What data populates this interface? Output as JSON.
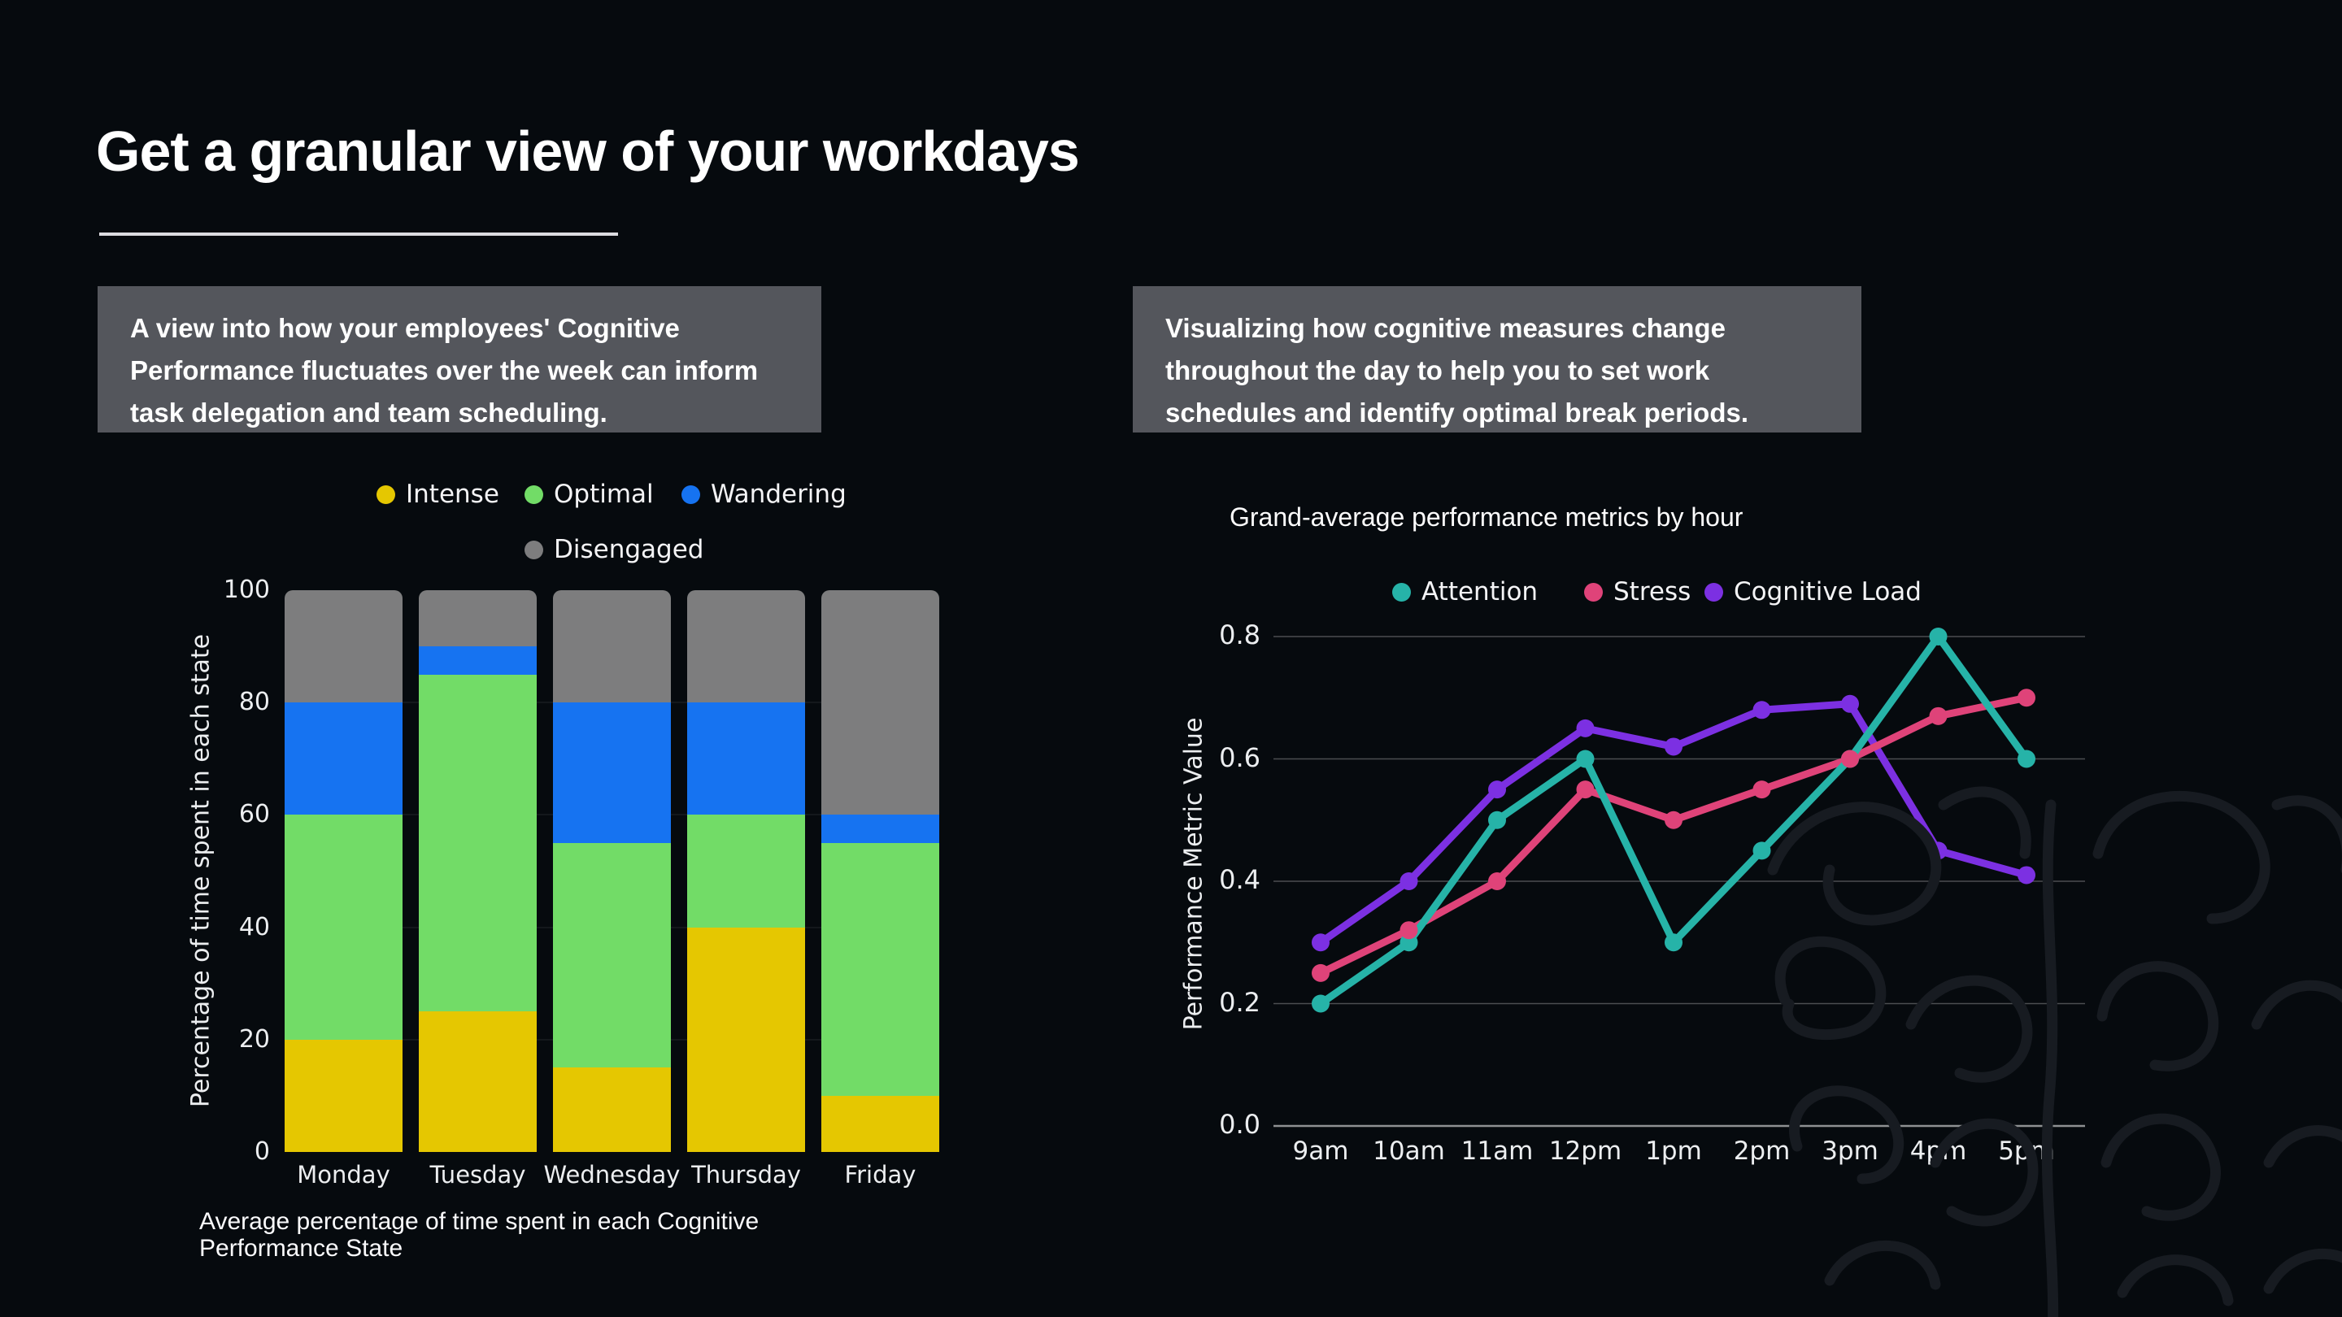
{
  "title": "Get a granular view of your workdays",
  "info_boxes": {
    "left": "A view into how your employees' Cognitive Performance fluctuates over the week can inform task delegation and team scheduling.",
    "right": "Visualizing how cognitive measures change throughout the day to help you to set work schedules and identify optimal break periods."
  },
  "colors": {
    "background": "#060a0e",
    "info_box_bg": "#54565c",
    "intense": "#e5c701",
    "optimal": "#72dc67",
    "wandering": "#1673f1",
    "disengaged": "#7d7d7e",
    "attention": "#26b3a8",
    "stress": "#df4379",
    "cognitive_load": "#7c30e2"
  },
  "chart_data": [
    {
      "id": "weekday-cognitive-states",
      "type": "bar",
      "stacked": true,
      "categories": [
        "Monday",
        "Tuesday",
        "Wednesday",
        "Thursday",
        "Friday"
      ],
      "series": [
        {
          "name": "Intense",
          "color_key": "intense",
          "values": [
            20,
            25,
            15,
            40,
            10
          ]
        },
        {
          "name": "Optimal",
          "color_key": "optimal",
          "values": [
            40,
            60,
            40,
            20,
            45
          ]
        },
        {
          "name": "Wandering",
          "color_key": "wandering",
          "values": [
            20,
            5,
            25,
            20,
            5
          ]
        },
        {
          "name": "Disengaged",
          "color_key": "disengaged",
          "values": [
            20,
            10,
            20,
            20,
            40
          ]
        }
      ],
      "ylabel": "Percentage of time spent in each state",
      "yticks": [
        100,
        80,
        60,
        40,
        20,
        0
      ],
      "ylim": [
        0,
        100
      ],
      "grid": false,
      "legend_position": "top",
      "caption": "Average percentage of time spent in each Cognitive Performance State"
    },
    {
      "id": "hourly-performance-metrics",
      "type": "line",
      "title": "Grand-average performance metrics by hour",
      "x": [
        "9am",
        "10am",
        "11am",
        "12pm",
        "1pm",
        "2pm",
        "3pm",
        "4pm",
        "5pm"
      ],
      "series": [
        {
          "name": "Attention",
          "color_key": "attention",
          "values": [
            0.2,
            0.3,
            0.5,
            0.6,
            0.3,
            0.45,
            0.6,
            0.8,
            0.6
          ]
        },
        {
          "name": "Stress",
          "color_key": "stress",
          "values": [
            0.25,
            0.32,
            0.4,
            0.55,
            0.5,
            0.55,
            0.6,
            0.67,
            0.7
          ]
        },
        {
          "name": "Cognitive Load",
          "color_key": "cognitive_load",
          "values": [
            0.3,
            0.4,
            0.55,
            0.65,
            0.62,
            0.68,
            0.69,
            0.45,
            0.41
          ]
        }
      ],
      "ylabel": "Performance Metric Value",
      "yticks": [
        0.8,
        0.6,
        0.4,
        0.2,
        0.0
      ],
      "ylim": [
        0,
        0.88
      ],
      "grid": true,
      "legend_position": "top"
    }
  ]
}
